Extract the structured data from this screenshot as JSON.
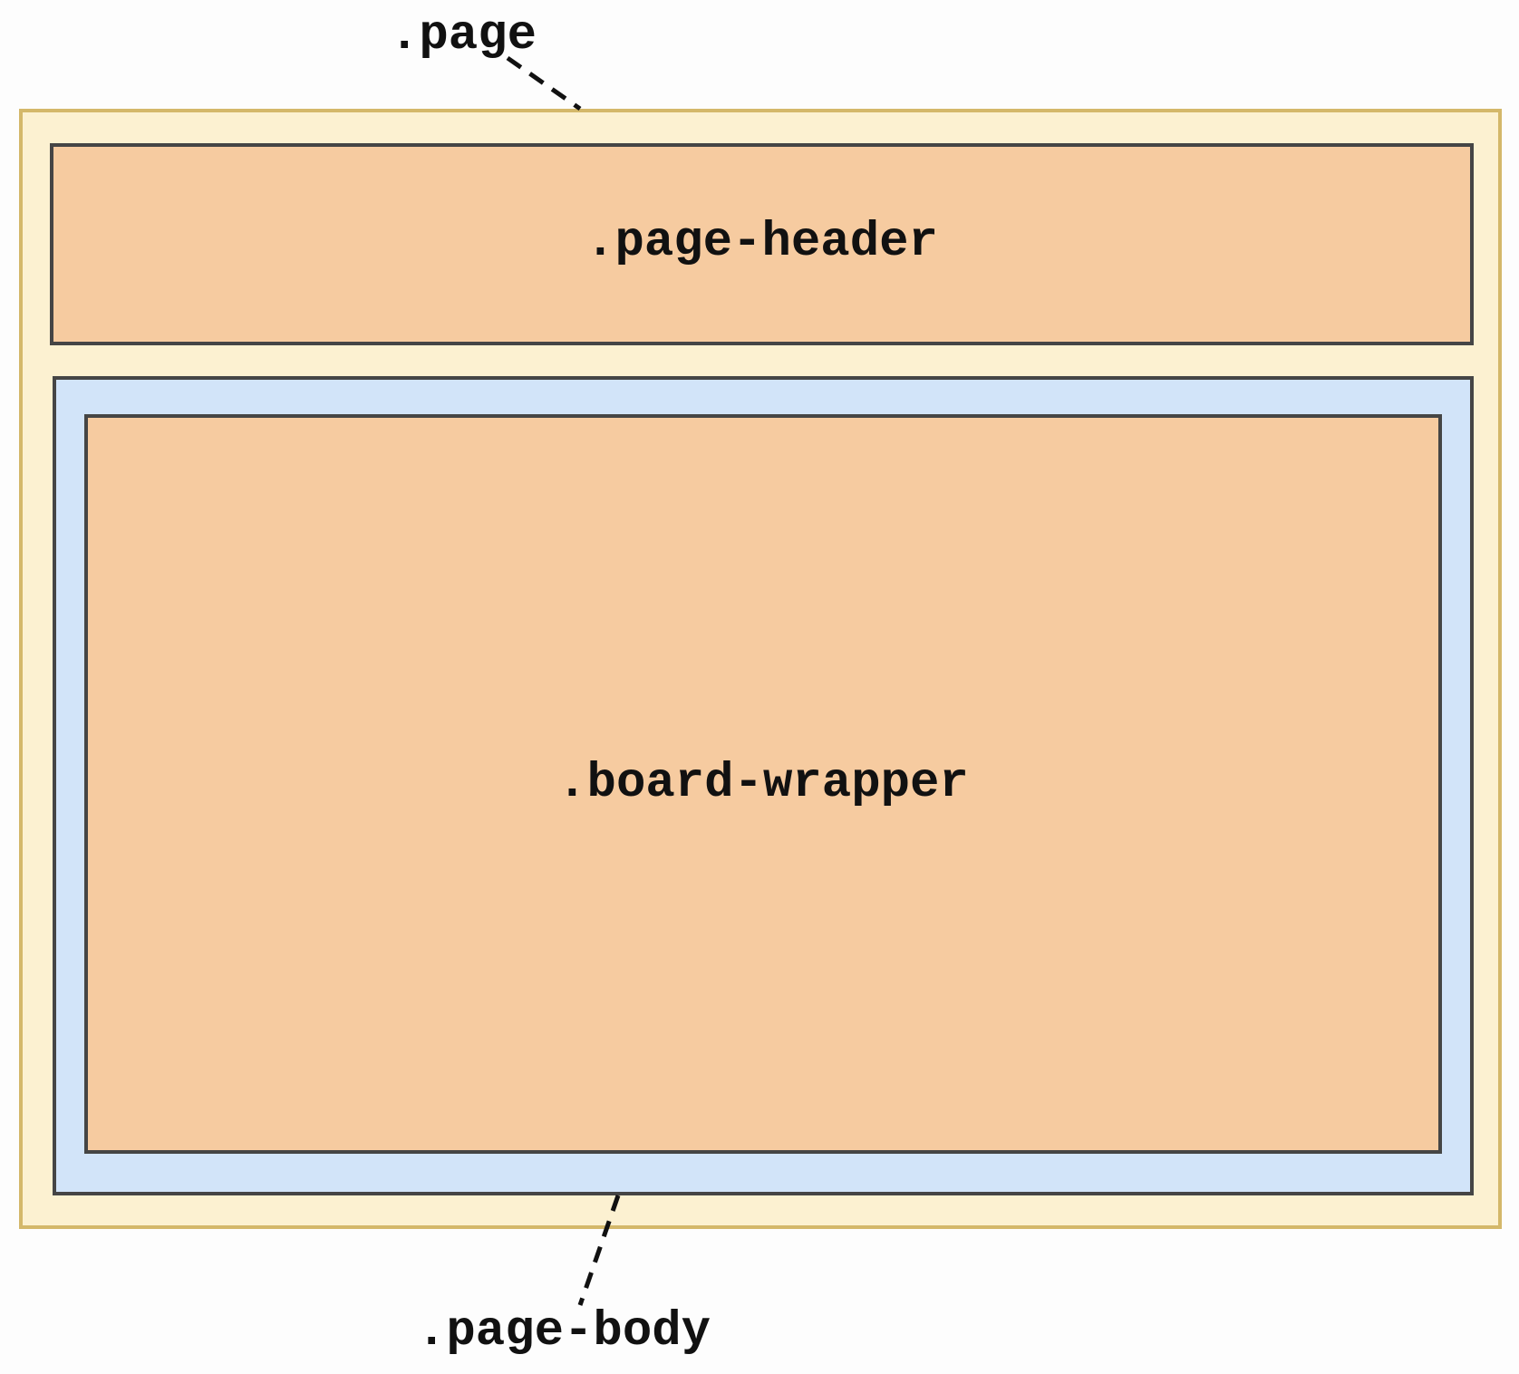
{
  "diagram": {
    "labels": {
      "page": ".page",
      "page_header": ".page-header",
      "board_wrapper": ".board-wrapper",
      "page_body": ".page-body"
    },
    "colors": {
      "page_fill": "#fcf1d1",
      "page_border": "#d4b86a",
      "header_fill": "#f6cba0",
      "body_fill": "#d2e4f9",
      "wrapper_fill": "#f6cba0",
      "box_border": "#454545"
    }
  }
}
